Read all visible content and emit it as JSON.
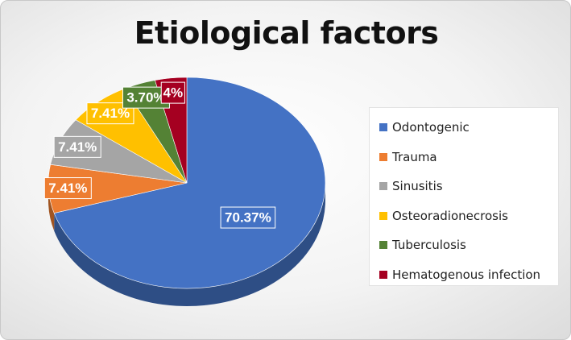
{
  "chart_data": {
    "type": "pie",
    "title": "Etiological factors",
    "legend_position": "right",
    "slices": [
      {
        "name": "Odontogenic",
        "value": 70.37,
        "label": "70.37%",
        "color": "#4472C4"
      },
      {
        "name": "Trauma",
        "value": 7.41,
        "label": "7.41%",
        "color": "#ED7D31"
      },
      {
        "name": "Sinusitis",
        "value": 7.41,
        "label": "7.41%",
        "color": "#A5A5A5"
      },
      {
        "name": "Osteoradionecrosis",
        "value": 7.41,
        "label": "7.41%",
        "color": "#FFC000"
      },
      {
        "name": "Tuberculosis",
        "value": 3.7,
        "label": "3.70%",
        "color": "#548235"
      },
      {
        "name": "Hematogenous infection",
        "value": 3.7,
        "label": "4%",
        "color": "#A50021"
      }
    ]
  }
}
